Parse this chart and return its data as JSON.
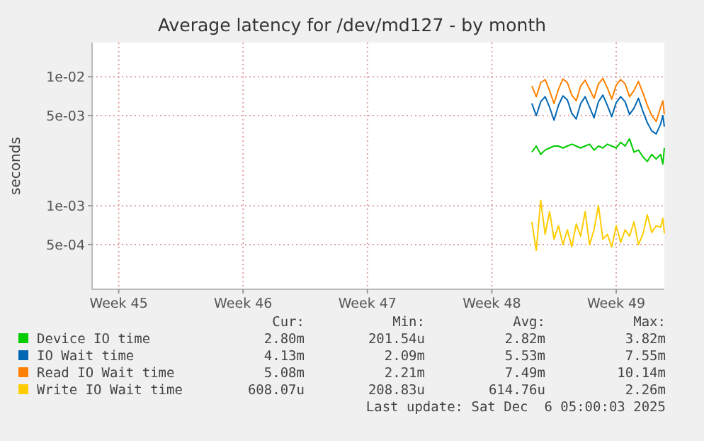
{
  "chart_data": {
    "type": "line",
    "title": "Average latency for /dev/md127 - by month",
    "ylabel": "seconds",
    "log": true,
    "grid": true,
    "legend": "bottom",
    "marker": "none",
    "line_style": "solid",
    "x": [
      "2025-11-28T18:00",
      "2025-11-29T00:00",
      "2025-11-29T06:00",
      "2025-11-29T12:00",
      "2025-11-29T18:00",
      "2025-11-30T00:00",
      "2025-11-30T06:00",
      "2025-11-30T12:00",
      "2025-11-30T18:00",
      "2025-12-01T00:00",
      "2025-12-01T06:00",
      "2025-12-01T12:00",
      "2025-12-01T18:00",
      "2025-12-02T00:00",
      "2025-12-02T06:00",
      "2025-12-02T12:00",
      "2025-12-02T18:00",
      "2025-12-03T00:00",
      "2025-12-03T06:00",
      "2025-12-03T12:00",
      "2025-12-03T18:00",
      "2025-12-04T00:00",
      "2025-12-04T06:00",
      "2025-12-04T12:00",
      "2025-12-04T18:00",
      "2025-12-05T00:00",
      "2025-12-05T06:00",
      "2025-12-05T12:00",
      "2025-12-05T18:00",
      "2025-12-06T00:00",
      "2025-12-06T03:00",
      "2025-12-06T05:00"
    ],
    "xlim": [
      "2025-11-04T00:00",
      "2025-12-06T05:00"
    ],
    "xticks": [
      {
        "value": "2025-11-05T12:00",
        "label": "Week 45"
      },
      {
        "value": "2025-11-12T12:00",
        "label": "Week 46"
      },
      {
        "value": "2025-11-19T12:00",
        "label": "Week 47"
      },
      {
        "value": "2025-11-26T12:00",
        "label": "Week 48"
      },
      {
        "value": "2025-12-03T12:00",
        "label": "Week 49"
      }
    ],
    "ylim": [
      0.000225,
      0.0184
    ],
    "yticks": [
      {
        "value": 0.0005,
        "label": "5e-04"
      },
      {
        "value": 0.001,
        "label": "1e-03"
      },
      {
        "value": 0.005,
        "label": "5e-03"
      },
      {
        "value": 0.01,
        "label": "1e-02"
      }
    ],
    "series": [
      {
        "name": "Device IO time",
        "color": "#00cc00",
        "values": [
          0.0026,
          0.0029,
          0.0025,
          0.0027,
          0.0028,
          0.0029,
          0.0029,
          0.0028,
          0.0029,
          0.003,
          0.0029,
          0.0028,
          0.0029,
          0.003,
          0.0027,
          0.0029,
          0.0028,
          0.003,
          0.0029,
          0.0028,
          0.0031,
          0.0029,
          0.0033,
          0.0026,
          0.0027,
          0.0024,
          0.0022,
          0.0025,
          0.0023,
          0.0025,
          0.0021,
          0.0028
        ]
      },
      {
        "name": "IO Wait time",
        "color": "#0066b3",
        "values": [
          0.0062,
          0.005,
          0.0064,
          0.007,
          0.0058,
          0.0046,
          0.006,
          0.0071,
          0.0066,
          0.0052,
          0.0047,
          0.0062,
          0.007,
          0.0058,
          0.0048,
          0.0064,
          0.0072,
          0.006,
          0.0049,
          0.0063,
          0.007,
          0.0064,
          0.0051,
          0.0057,
          0.0068,
          0.0054,
          0.0044,
          0.0038,
          0.0036,
          0.0043,
          0.005,
          0.0041
        ]
      },
      {
        "name": "Read IO Wait time",
        "color": "#ff8000",
        "values": [
          0.0085,
          0.007,
          0.009,
          0.0095,
          0.0078,
          0.0062,
          0.008,
          0.0096,
          0.009,
          0.0072,
          0.0065,
          0.0085,
          0.0094,
          0.008,
          0.0068,
          0.0088,
          0.0097,
          0.0082,
          0.0067,
          0.0086,
          0.0095,
          0.0088,
          0.007,
          0.0078,
          0.0092,
          0.0075,
          0.006,
          0.005,
          0.0045,
          0.0058,
          0.0065,
          0.0051
        ]
      },
      {
        "name": "Write IO Wait time",
        "color": "#ffcc00",
        "values": [
          0.00075,
          0.00045,
          0.0011,
          0.0006,
          0.0009,
          0.00055,
          0.0007,
          0.0005,
          0.00065,
          0.00048,
          0.00072,
          0.00058,
          0.0009,
          0.0005,
          0.00065,
          0.001,
          0.00055,
          0.0006,
          0.00048,
          0.0007,
          0.00052,
          0.00065,
          0.00058,
          0.00075,
          0.0005,
          0.0006,
          0.00085,
          0.00062,
          0.0007,
          0.00068,
          0.0008,
          0.00061
        ]
      }
    ],
    "annotations": [
      "Cur:",
      "Min:",
      "Avg:",
      "Max:",
      "2.80m",
      "201.54u",
      "2.82m",
      "3.82m",
      "4.13m",
      "2.09m",
      "5.53m",
      "7.55m",
      "5.08m",
      "2.21m",
      "7.49m",
      "10.14m",
      "608.07u",
      "208.83u",
      "614.76u",
      "2.26m",
      "Last update: Sat Dec  6 05:00:03 2025"
    ]
  }
}
